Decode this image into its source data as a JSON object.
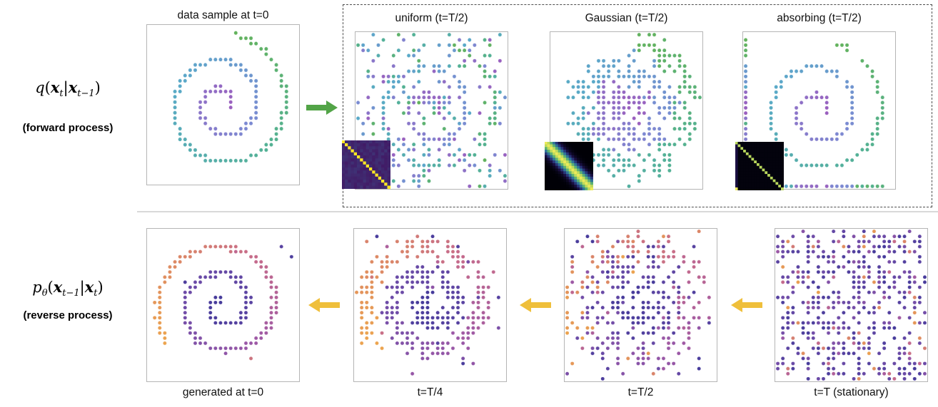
{
  "colors": {
    "background": "#ffffff",
    "panel_border": "#b5b5b5",
    "dashed_border": "#4d4d4d",
    "divider": "#d9d9d9",
    "forward_arrow": "#52a447",
    "reverse_arrow": "#efbf3b",
    "title_text": "#111111"
  },
  "forward": {
    "eq": {
      "f": "q",
      "open": "(",
      "x1": "x",
      "s1": "t",
      "bar": "|",
      "x2": "x",
      "s2": "t−1",
      "close": ")"
    },
    "process_label": "(forward process)",
    "data_title": "data sample at t=0",
    "variant_titles": [
      "uniform (t=T/2)",
      "Gaussian (t=T/2)",
      "absorbing (t=T/2)"
    ]
  },
  "reverse": {
    "eq": {
      "f": "p",
      "fs": "θ",
      "open": "(",
      "x1": "x",
      "s1": "t−1",
      "bar": "|",
      "x2": "x",
      "s2": "t",
      "close": ")"
    },
    "process_label": "(reverse process)",
    "panel_titles": [
      "generated at t=0",
      "t=T/4",
      "t=T/2",
      "t=T (stationary)"
    ]
  },
  "colormaps": {
    "viridis": [
      [
        0,
        "#9a5fbe"
      ],
      [
        0.3,
        "#7b8ad2"
      ],
      [
        0.55,
        "#59a9c8"
      ],
      [
        0.8,
        "#53b194"
      ],
      [
        1,
        "#63b25c"
      ]
    ],
    "warm": [
      [
        0,
        "#463b9b"
      ],
      [
        0.4,
        "#6f4ca8"
      ],
      [
        0.58,
        "#9c58a6"
      ],
      [
        0.74,
        "#c56a8b"
      ],
      [
        0.88,
        "#de8a62"
      ],
      [
        1,
        "#eca44e"
      ]
    ],
    "viridis_full": [
      [
        0,
        "#440154"
      ],
      [
        0.25,
        "#3b528b"
      ],
      [
        0.5,
        "#21918c"
      ],
      [
        0.75,
        "#5ec962"
      ],
      [
        1,
        "#fde725"
      ]
    ],
    "dark_band": [
      [
        0,
        "#000006"
      ],
      [
        0.18,
        "#1d1148"
      ],
      [
        0.4,
        "#32529e"
      ],
      [
        0.62,
        "#2f9594"
      ],
      [
        0.82,
        "#79c35e"
      ],
      [
        1,
        "#ece95a"
      ]
    ]
  },
  "plots": [
    {
      "label": "data sample at t=0",
      "kind": "spiral",
      "seed": 11,
      "rotation": 78,
      "turns": 2.3,
      "n": 400,
      "colormap": "viridis",
      "noise": "none"
    },
    {
      "label": "uniform (t=T/2)",
      "kind": "spiral",
      "seed": 23,
      "rotation": 78,
      "turns": 2.3,
      "n": 400,
      "colormap": "viridis",
      "noise": "uniform",
      "keep": 0.45
    },
    {
      "label": "Gaussian (t=T/2)",
      "kind": "spiral",
      "seed": 35,
      "rotation": 78,
      "turns": 2.3,
      "n": 400,
      "colormap": "viridis",
      "noise": "gaussian",
      "sigma": 0.2
    },
    {
      "label": "absorbing (t=T/2)",
      "kind": "spiral",
      "seed": 47,
      "rotation": 78,
      "turns": 2.3,
      "n": 400,
      "colormap": "viridis",
      "noise": "absorbing",
      "absorb": 0.42
    },
    {
      "label": "generated at t=0",
      "kind": "spiral",
      "seed": 59,
      "rotation": 212,
      "turns": 2.3,
      "n": 400,
      "colormap": "warm",
      "noise": "jitter",
      "scatter": 0.005,
      "jitter": 0.02,
      "strays": 2
    },
    {
      "label": "t=T/4",
      "kind": "spiral",
      "seed": 61,
      "rotation": 212,
      "turns": 2.3,
      "n": 400,
      "colormap": "warm",
      "noise": "jitter",
      "scatter": 0.07,
      "jitter": 0.12,
      "strays": 1
    },
    {
      "label": "t=T/2",
      "kind": "spiral",
      "seed": 73,
      "rotation": 212,
      "turns": 2.3,
      "n": 400,
      "colormap": "warm",
      "noise": "jitter",
      "scatter": 0.25,
      "jitter": 0.24
    },
    {
      "label": "t=T (stationary)",
      "kind": "random",
      "seed": 85,
      "count": 500,
      "colormap": "warm"
    }
  ],
  "matrices": [
    {
      "label": "uniform transition matrix",
      "type": "uniform",
      "colormap": "viridis_full",
      "n": 16,
      "seed": 5
    },
    {
      "label": "Gaussian transition matrix",
      "type": "gaussian",
      "colormap": "dark_band",
      "n": 18,
      "bandwidth": 2.6,
      "seed": 6
    },
    {
      "label": "absorbing transition matrix",
      "type": "absorbing",
      "colormap": "dark_band",
      "n": 18,
      "seed": 7
    }
  ]
}
